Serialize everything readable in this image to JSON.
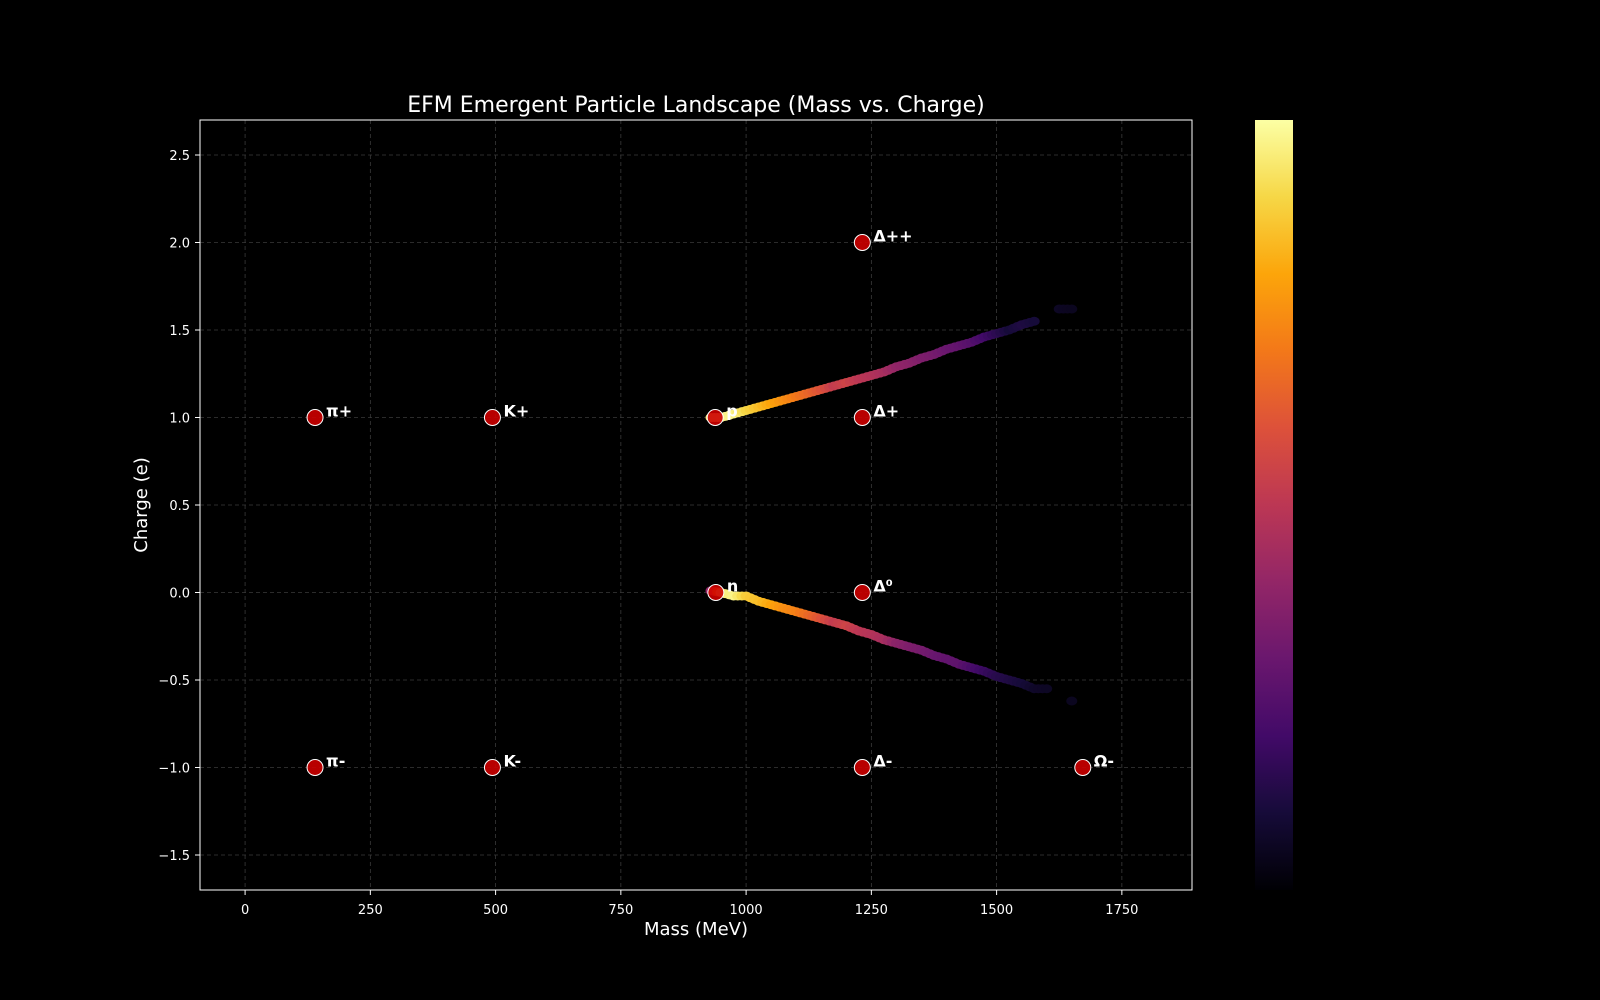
{
  "chart_data": {
    "type": "scatter",
    "title": "EFM Emergent Particle Landscape (Mass vs. Charge)",
    "xlabel": "Mass (MeV)",
    "ylabel": "Charge (e)",
    "xlim": [
      -90,
      1890
    ],
    "ylim": [
      -1.7,
      2.7
    ],
    "xticks": [
      0,
      250,
      500,
      750,
      1000,
      1250,
      1500,
      1750
    ],
    "yticks": [
      -1.5,
      -1.0,
      -0.5,
      0.0,
      0.5,
      1.0,
      1.5,
      2.0,
      2.5
    ],
    "xtick_labels": [
      "0",
      "250",
      "500",
      "750",
      "1000",
      "1250",
      "1500",
      "1750"
    ],
    "ytick_labels": [
      "−1.5",
      "−1.0",
      "−0.5",
      "0.0",
      "0.5",
      "1.0",
      "1.5",
      "2.0",
      "2.5"
    ],
    "grid": true,
    "colormap": "inferno",
    "colorbar": "right",
    "marker_color": "#cc0000",
    "particles": [
      {
        "label": "π+",
        "mass": 139.6,
        "charge": 1
      },
      {
        "label": "π-",
        "mass": 139.6,
        "charge": -1
      },
      {
        "label": "K+",
        "mass": 493.7,
        "charge": 1
      },
      {
        "label": "K-",
        "mass": 493.7,
        "charge": -1
      },
      {
        "label": "p",
        "mass": 938.3,
        "charge": 1
      },
      {
        "label": "n",
        "mass": 939.6,
        "charge": 0
      },
      {
        "label": "Δ++",
        "mass": 1232,
        "charge": 2
      },
      {
        "label": "Δ+",
        "mass": 1232,
        "charge": 1
      },
      {
        "label": "Δ⁰",
        "mass": 1232,
        "charge": 0
      },
      {
        "label": "Δ-",
        "mass": 1232,
        "charge": -1
      },
      {
        "label": "Ω-",
        "mass": 1672,
        "charge": -1
      }
    ],
    "density_bands": [
      {
        "name": "",
        "points": [
          {
            "x": 930,
            "y": 1.0,
            "v": 0.95
          },
          {
            "x": 950,
            "y": 1.0,
            "v": 0.98
          },
          {
            "x": 975,
            "y": 1.02,
            "v": 0.97
          },
          {
            "x": 1000,
            "y": 1.04,
            "v": 0.9
          },
          {
            "x": 1025,
            "y": 1.06,
            "v": 0.85
          },
          {
            "x": 1050,
            "y": 1.08,
            "v": 0.8
          },
          {
            "x": 1075,
            "y": 1.1,
            "v": 0.75
          },
          {
            "x": 1100,
            "y": 1.12,
            "v": 0.7
          },
          {
            "x": 1125,
            "y": 1.14,
            "v": 0.65
          },
          {
            "x": 1150,
            "y": 1.16,
            "v": 0.6
          },
          {
            "x": 1175,
            "y": 1.18,
            "v": 0.52
          },
          {
            "x": 1200,
            "y": 1.2,
            "v": 0.55
          },
          {
            "x": 1225,
            "y": 1.22,
            "v": 0.5
          },
          {
            "x": 1250,
            "y": 1.24,
            "v": 0.48
          },
          {
            "x": 1275,
            "y": 1.26,
            "v": 0.45
          },
          {
            "x": 1300,
            "y": 1.29,
            "v": 0.4
          },
          {
            "x": 1325,
            "y": 1.31,
            "v": 0.38
          },
          {
            "x": 1350,
            "y": 1.34,
            "v": 0.35
          },
          {
            "x": 1375,
            "y": 1.36,
            "v": 0.33
          },
          {
            "x": 1400,
            "y": 1.39,
            "v": 0.3
          },
          {
            "x": 1425,
            "y": 1.41,
            "v": 0.28
          },
          {
            "x": 1450,
            "y": 1.43,
            "v": 0.25
          },
          {
            "x": 1475,
            "y": 1.46,
            "v": 0.2
          },
          {
            "x": 1500,
            "y": 1.48,
            "v": 0.15
          },
          {
            "x": 1525,
            "y": 1.5,
            "v": 0.1
          },
          {
            "x": 1550,
            "y": 1.53,
            "v": 0.12
          },
          {
            "x": 1575,
            "y": 1.55,
            "v": 0.1
          },
          {
            "x": 1625,
            "y": 1.62,
            "v": 0.06
          },
          {
            "x": 1650,
            "y": 1.62,
            "v": 0.05
          }
        ]
      },
      {
        "name": "",
        "points": [
          {
            "x": 930,
            "y": 0.01,
            "v": 0.4
          },
          {
            "x": 950,
            "y": 0.0,
            "v": 0.95
          },
          {
            "x": 975,
            "y": -0.02,
            "v": 0.97
          },
          {
            "x": 1000,
            "y": -0.02,
            "v": 0.88
          },
          {
            "x": 1025,
            "y": -0.05,
            "v": 0.85
          },
          {
            "x": 1050,
            "y": -0.07,
            "v": 0.8
          },
          {
            "x": 1075,
            "y": -0.09,
            "v": 0.75
          },
          {
            "x": 1100,
            "y": -0.11,
            "v": 0.72
          },
          {
            "x": 1125,
            "y": -0.13,
            "v": 0.66
          },
          {
            "x": 1150,
            "y": -0.15,
            "v": 0.6
          },
          {
            "x": 1175,
            "y": -0.17,
            "v": 0.52
          },
          {
            "x": 1200,
            "y": -0.19,
            "v": 0.55
          },
          {
            "x": 1225,
            "y": -0.22,
            "v": 0.5
          },
          {
            "x": 1250,
            "y": -0.24,
            "v": 0.48
          },
          {
            "x": 1275,
            "y": -0.27,
            "v": 0.45
          },
          {
            "x": 1300,
            "y": -0.29,
            "v": 0.38
          },
          {
            "x": 1325,
            "y": -0.31,
            "v": 0.35
          },
          {
            "x": 1350,
            "y": -0.33,
            "v": 0.33
          },
          {
            "x": 1375,
            "y": -0.36,
            "v": 0.3
          },
          {
            "x": 1400,
            "y": -0.38,
            "v": 0.28
          },
          {
            "x": 1425,
            "y": -0.41,
            "v": 0.27
          },
          {
            "x": 1450,
            "y": -0.43,
            "v": 0.22
          },
          {
            "x": 1475,
            "y": -0.45,
            "v": 0.18
          },
          {
            "x": 1500,
            "y": -0.48,
            "v": 0.14
          },
          {
            "x": 1525,
            "y": -0.5,
            "v": 0.12
          },
          {
            "x": 1550,
            "y": -0.52,
            "v": 0.1
          },
          {
            "x": 1575,
            "y": -0.55,
            "v": 0.07
          },
          {
            "x": 1600,
            "y": -0.55,
            "v": 0.06
          },
          {
            "x": 1650,
            "y": -0.62,
            "v": 0.05
          }
        ]
      }
    ]
  }
}
